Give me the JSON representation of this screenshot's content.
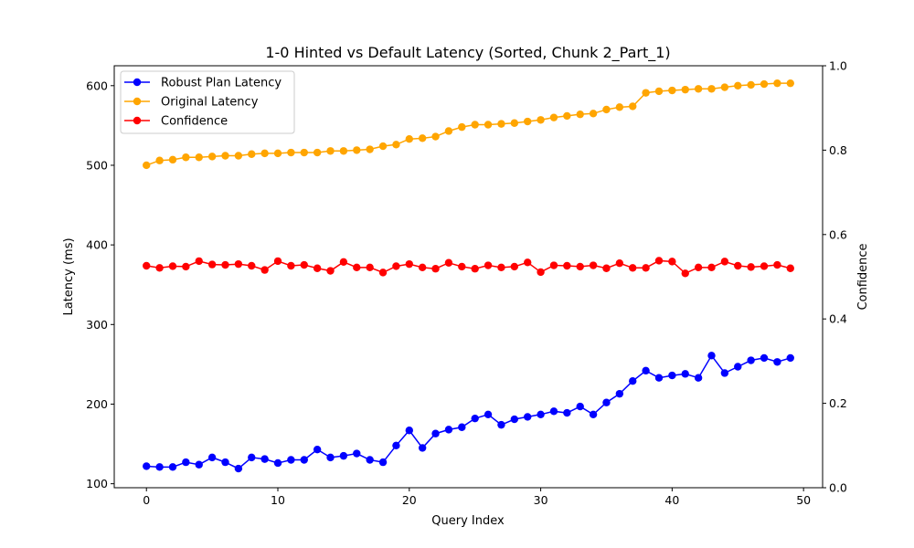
{
  "chart_data": {
    "type": "line",
    "title": "1-0 Hinted vs Default Latency (Sorted, Chunk 2_Part_1)",
    "xlabel": "Query Index",
    "ylabel": "Latency (ms)",
    "y2label": "Confidence",
    "xlim": [
      -2.45,
      51.45
    ],
    "ylim": [
      95,
      625
    ],
    "y2lim": [
      0,
      1
    ],
    "xticks": [
      0,
      10,
      20,
      30,
      40,
      50
    ],
    "yticks": [
      100,
      200,
      300,
      400,
      500,
      600
    ],
    "y2ticks": [
      0.0,
      0.2,
      0.4,
      0.6,
      0.8,
      1.0
    ],
    "y2tick_labels": [
      "0.0",
      "0.2",
      "0.4",
      "0.6",
      "0.8",
      "1.0"
    ],
    "legend_position": "upper-left",
    "grid": false,
    "x": [
      0,
      1,
      2,
      3,
      4,
      5,
      6,
      7,
      8,
      9,
      10,
      11,
      12,
      13,
      14,
      15,
      16,
      17,
      18,
      19,
      20,
      21,
      22,
      23,
      24,
      25,
      26,
      27,
      28,
      29,
      30,
      31,
      32,
      33,
      34,
      35,
      36,
      37,
      38,
      39,
      40,
      41,
      42,
      43,
      44,
      45,
      46,
      47,
      48,
      49
    ],
    "series": [
      {
        "name": "Robust Plan Latency",
        "axis": "left",
        "color": "#0000ff",
        "values": [
          122,
          121,
          121,
          127,
          124,
          133,
          127,
          119,
          133,
          131,
          126,
          130,
          130,
          143,
          133,
          135,
          138,
          130,
          127,
          148,
          167,
          145,
          163,
          168,
          171,
          182,
          187,
          174,
          181,
          184,
          187,
          191,
          189,
          197,
          187,
          202,
          213,
          229,
          242,
          233,
          236,
          238,
          233,
          261,
          239,
          247,
          255,
          258,
          253,
          258
        ]
      },
      {
        "name": "Original Latency",
        "axis": "left",
        "color": "#ffa500",
        "values": [
          500,
          506,
          507,
          510,
          510,
          511,
          512,
          512,
          514,
          515,
          515,
          516,
          516,
          516,
          518,
          518,
          519,
          520,
          524,
          526,
          533,
          534,
          536,
          543,
          548,
          551,
          551,
          552,
          553,
          555,
          557,
          560,
          562,
          564,
          565,
          570,
          573,
          574,
          591,
          593,
          594,
          595,
          596,
          596,
          598,
          600,
          601,
          602,
          603,
          603
        ]
      },
      {
        "name": "Confidence",
        "axis": "right",
        "color": "#ff0000",
        "values": [
          0.526,
          0.521,
          0.525,
          0.524,
          0.537,
          0.529,
          0.528,
          0.53,
          0.526,
          0.516,
          0.537,
          0.526,
          0.528,
          0.52,
          0.514,
          0.535,
          0.522,
          0.522,
          0.51,
          0.525,
          0.53,
          0.522,
          0.519,
          0.533,
          0.524,
          0.519,
          0.527,
          0.522,
          0.524,
          0.534,
          0.511,
          0.527,
          0.526,
          0.524,
          0.527,
          0.52,
          0.532,
          0.521,
          0.521,
          0.538,
          0.536,
          0.508,
          0.522,
          0.522,
          0.536,
          0.526,
          0.523,
          0.525,
          0.528,
          0.52
        ]
      }
    ]
  }
}
